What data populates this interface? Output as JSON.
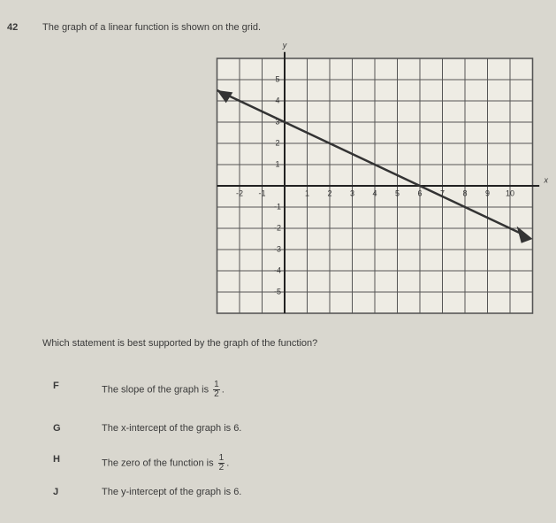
{
  "question": {
    "number": "42",
    "text": "The graph of a linear function is shown on the grid."
  },
  "graph": {
    "x_axis_label": "x",
    "y_axis_label": "y",
    "x_tick_labels": [
      "-2",
      "-1",
      "1",
      "2",
      "3",
      "4",
      "5",
      "6",
      "7",
      "8",
      "9",
      "10"
    ],
    "y_tick_labels": [
      "5",
      "4",
      "3",
      "2",
      "1",
      "-1",
      "-2",
      "-3",
      "-4",
      "-5"
    ]
  },
  "prompt": "Which statement is best supported by the graph of the function?",
  "options": {
    "f": {
      "letter": "F",
      "text": "The slope of the graph is",
      "numerator": "1",
      "denominator": "2",
      "end": "."
    },
    "g": {
      "letter": "G",
      "text": "The x-intercept of the graph is 6."
    },
    "h": {
      "letter": "H",
      "text": "The zero of the function is",
      "numerator": "1",
      "denominator": "2",
      "end": "."
    },
    "j": {
      "letter": "J",
      "text": "The y-intercept of the graph is 6."
    }
  }
}
